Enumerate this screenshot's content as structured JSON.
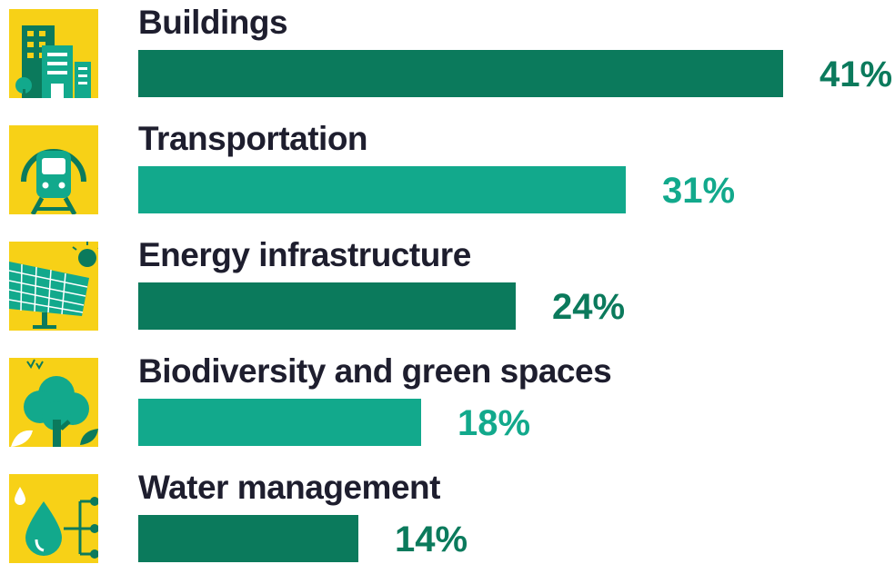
{
  "chart_data": {
    "type": "bar",
    "orientation": "horizontal",
    "categories": [
      "Buildings",
      "Transportation",
      "Energy infrastructure",
      "Biodiversity and green spaces",
      "Water management"
    ],
    "values": [
      41,
      31,
      24,
      18,
      14
    ],
    "value_labels": [
      "41%",
      "31%",
      "24%",
      "18%",
      "14%"
    ],
    "icons": [
      "buildings-icon",
      "train-icon",
      "solar-panel-icon",
      "tree-icon",
      "water-drop-icon"
    ],
    "bar_colors": [
      "#0b7a5c",
      "#12a98c",
      "#0b7a5c",
      "#12a98c",
      "#0b7a5c"
    ],
    "label_colors": [
      "#0b7a5c",
      "#12a98c",
      "#0b7a5c",
      "#12a98c",
      "#0b7a5c"
    ],
    "icon_background": "#f7d117",
    "xlim": [
      0,
      41
    ],
    "grid": false
  }
}
